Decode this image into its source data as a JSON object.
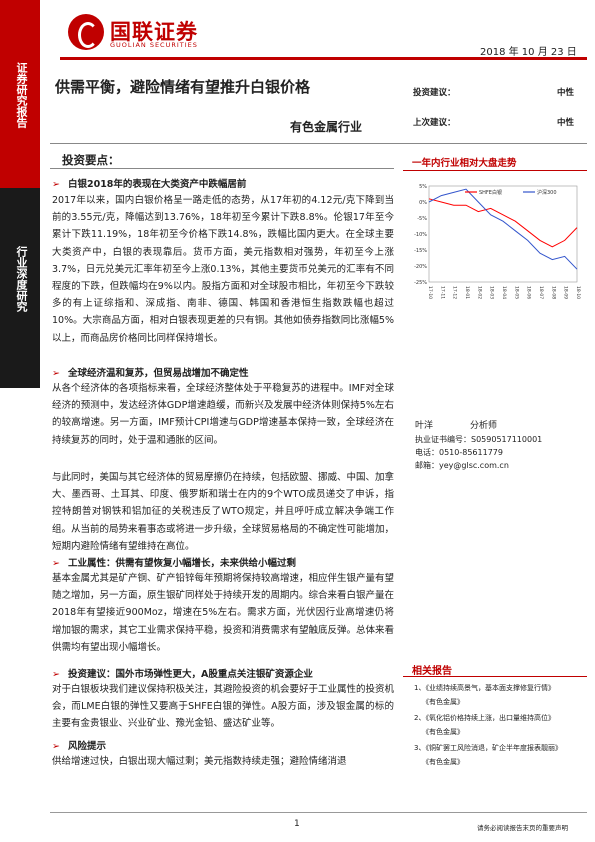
{
  "sidebar": {
    "top_label": "证券研究报告",
    "mid_label": "行业深度研究"
  },
  "brand": {
    "name_cn": "国联证券",
    "name_en": "GUOLIAN SECURITIES",
    "color": "#c00000"
  },
  "header": {
    "date": "2018 年 10 月 23 日"
  },
  "report": {
    "title": "供需平衡，避险情绪有望推升白银价格",
    "industry": "有色金属行业",
    "rating_label": "投资建议：",
    "rating_value": "中性",
    "prev_rating_label": "上次建议：",
    "prev_rating_value": "中性"
  },
  "key_points": {
    "heading": "投资要点：",
    "bullet1": "白银2018年的表现在大类资产中跌幅居前",
    "para1": "2017年以来，国内白银价格呈一路走低的态势，从17年初的4.12元/克下降到当前的3.55元/克，降幅达到13.76%，18年初至今累计下跌8.8%。伦银17年至今累计下跌11.19%，18年初至今价格下跌14.8%，跌幅比国内更大。在全球主要大类资产中，白银的表现靠后。货币方面，美元指数相对强势，年初至今上涨3.7%，日元兑美元汇率年初至今上涨0.13%，其他主要货币兑美元的汇率有不同程度的下跌，但跌幅均在9%以内。股指方面和对全球股市相比，年初至今下跌较多的有上证综指和、深成指、南非、德国、韩国和香港恒生指数跌幅也超过10%。大宗商品方面，相对白银表现更差的只有铜。其他如债券指数同比涨幅5%以上，而商品房价格同比同样保持增长。",
    "bullet2": "全球经济温和复苏，但贸易战增加不确定性",
    "para2a": "从各个经济体的各项指标来看，全球经济整体处于平稳复苏的进程中。IMF对全球经济的预测中，发达经济体GDP增速趋缓，而新兴及发展中经济体则保持5%左右的较高增速。另一方面，IMF预计CPI增速与GDP增速基本保持一致，全球经济在持续复苏的同时，处于温和通胀的区间。",
    "para2b": "与此同时，美国与其它经济体的贸易摩擦仍在持续，包括欧盟、挪威、中国、加拿大、墨西哥、土耳其、印度、俄罗斯和瑞士在内的9个WTO成员递交了申诉，指控特朗普对钢铁和铝加征的关税违反了WTO规定，并且呼吁成立解决争端工作组。从当前的局势来看事态或将进一步升级，全球贸易格局的不确定性可能增加，短期内避险情绪有望维持在高位。",
    "bullet3": "工业属性：供需有望恢复小幅增长，未来供给小幅过剩",
    "para3": "基本金属尤其是矿产铜、矿产铅锌每年预期将保持较高增速，相应伴生银产量有望随之增加，另一方面，原生银矿同样处于持续开发的周期内。综合来看白银产量在2018年有望接近900Moz，增速在5%左右。需求方面，光伏因行业高增速仍将增加银的需求，其它工业需求保持平稳，投资和消费需求有望触底反弹。总体来看供需均有望出现小幅增长。",
    "bullet4": "投资建议：国外市场弹性更大，A股重点关注银矿资源企业",
    "para4": "对于白银板块我们建议保持积极关注，其避险投资的机会要好于工业属性的投资机会，而LME白银的弹性又要高于SHFE白银的弹性。A股方面，涉及银金属的标的主要有金贵银业、兴业矿业、豫光金铅、盛达矿业等。",
    "bullet5": "风险提示",
    "para5": "供给增速过快，白银出现大幅过剩；美元指数持续走强；避险情绪消退"
  },
  "chart_data": {
    "type": "line",
    "title": "一年内行业相对大盘走势",
    "x": [
      "17-10",
      "17-11",
      "17-12",
      "18-01",
      "18-02",
      "18-03",
      "18-04",
      "18-05",
      "18-06",
      "18-07",
      "18-08",
      "18-09",
      "18-10"
    ],
    "ylim": [
      -25,
      5
    ],
    "yticks": [
      "5%",
      "0%",
      "-5%",
      "-10%",
      "-15%",
      "-20%",
      "-25%"
    ],
    "series": [
      {
        "name": "SHFE白银",
        "color": "#ff0000",
        "values": [
          1,
          0,
          -1,
          -1,
          -3,
          -2,
          -4,
          -6,
          -9,
          -12,
          -14,
          -12,
          -8
        ]
      },
      {
        "name": "沪深300",
        "color": "#3355cc",
        "values": [
          0,
          2,
          3,
          4,
          0,
          -4,
          -6,
          -9,
          -12,
          -16,
          -18,
          -17,
          -21
        ]
      }
    ],
    "legend": "top"
  },
  "analyst": {
    "name": "叶洋",
    "title": "分析师",
    "license_label": "执业证书编号：",
    "license": "S0590517110001",
    "phone_label": "电话：",
    "phone": "0510-85611779",
    "email_label": "邮箱：",
    "email": "yey@glsc.com.cn"
  },
  "related": {
    "heading": "相关报告",
    "items": [
      "1、《业绩持续高景气，基本面支撑修复行情》",
      "2、《氧化铝价格持续上涨，出口量维持高位》",
      "3、《铜矿罢工风险消退，矿企半年度报表靓丽》"
    ],
    "source": "《有色金属》"
  },
  "footer": {
    "page": "1",
    "disclaimer": "请务必阅读报告末页的重要声明"
  }
}
